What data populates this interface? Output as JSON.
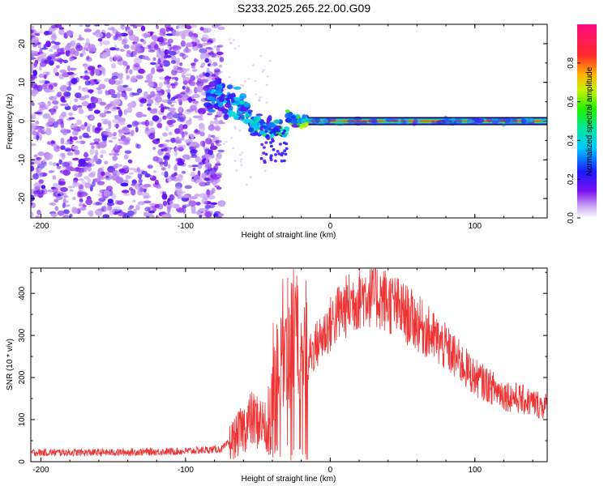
{
  "title": "S233.2025.265.22.00.G09",
  "chart_data": [
    {
      "type": "heatmap",
      "panel": "top",
      "xlabel": "Height of straight line (km)",
      "ylabel": "Frequency (Hz)",
      "xlim": [
        -207,
        150
      ],
      "ylim": [
        -25,
        25
      ],
      "xticks": [
        -200,
        -100,
        0,
        100
      ],
      "xtick_labels": [
        "-200",
        "-100",
        "0",
        "100"
      ],
      "yticks": [
        -20,
        -10,
        0,
        10,
        20
      ],
      "ytick_labels": [
        "-20",
        "-10",
        "0",
        "10",
        "20"
      ],
      "colorbar": {
        "label": "Normalized spectral amplitude",
        "range": [
          0,
          1
        ],
        "ticks": [
          0.0,
          0.2,
          0.4,
          0.6,
          0.8
        ],
        "tick_labels": [
          "0.0",
          "0.2",
          "0.4",
          "0.6",
          "0.8"
        ],
        "colormap": "rainbow (white-violet-blue-cyan-green-yellow-red-magenta)"
      },
      "features": {
        "noise_region_x": [
          -207,
          -75
        ],
        "transition_region_x": [
          -85,
          -15
        ],
        "stable_line_x": [
          -15,
          150
        ],
        "stable_line_frequency": 0,
        "line_amplitude": 0.9
      }
    },
    {
      "type": "line",
      "panel": "bottom",
      "xlabel": "Height of straight line (km)",
      "ylabel": "SNR (10 * v/v)",
      "xlim": [
        -207,
        150
      ],
      "ylim": [
        0,
        460
      ],
      "xticks": [
        -200,
        -100,
        0,
        100
      ],
      "xtick_labels": [
        "-200",
        "-100",
        "0",
        "100"
      ],
      "yticks": [
        0,
        100,
        200,
        300,
        400
      ],
      "ytick_labels": [
        "0",
        "100",
        "200",
        "300",
        "400"
      ],
      "series": [
        {
          "name": "SNR",
          "color": "#ee3333",
          "envelope": {
            "x": [
              -207,
              -150,
              -100,
              -75,
              -65,
              -55,
              -45,
              -35,
              -25,
              -15,
              -5,
              5,
              15,
              25,
              35,
              45,
              60,
              80,
              100,
              120,
              150
            ],
            "y": [
              22,
              22,
              25,
              30,
              60,
              100,
              90,
              220,
              300,
              250,
              300,
              350,
              380,
              400,
              390,
              370,
              330,
              270,
              200,
              160,
              130
            ]
          }
        }
      ]
    }
  ]
}
